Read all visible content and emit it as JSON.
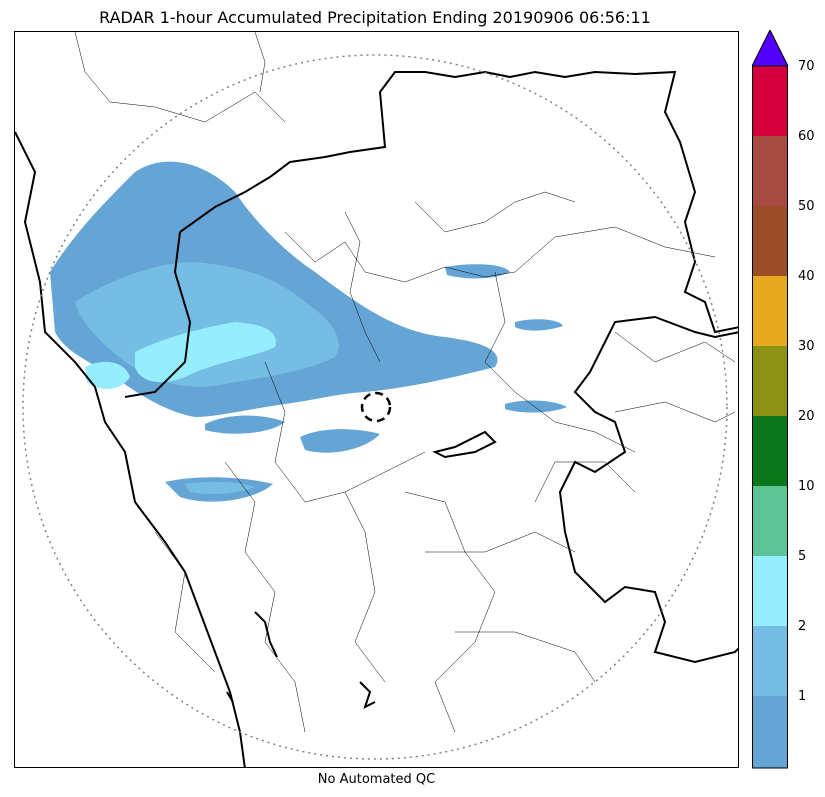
{
  "title": "RADAR 1-hour Accumulated Precipitation Ending 20190906 06:56:11",
  "footer_note": "No Automated QC",
  "map": {
    "land_color": "#ffffff",
    "coast_color": "#000000",
    "border_color": "#000000",
    "range_ring_color": "#808080"
  },
  "colorbar": {
    "extend": "max",
    "over_color": "#5200ff",
    "colors": [
      "#65a5d6",
      "#75bde3",
      "#95eefd",
      "#5dc396",
      "#0d7519",
      "#8c9216",
      "#e7a91e",
      "#9b4c29",
      "#a64b41",
      "#d4003e"
    ],
    "tick_labels": [
      "1",
      "2",
      "5",
      "10",
      "20",
      "30",
      "40",
      "50",
      "60",
      "70"
    ]
  }
}
